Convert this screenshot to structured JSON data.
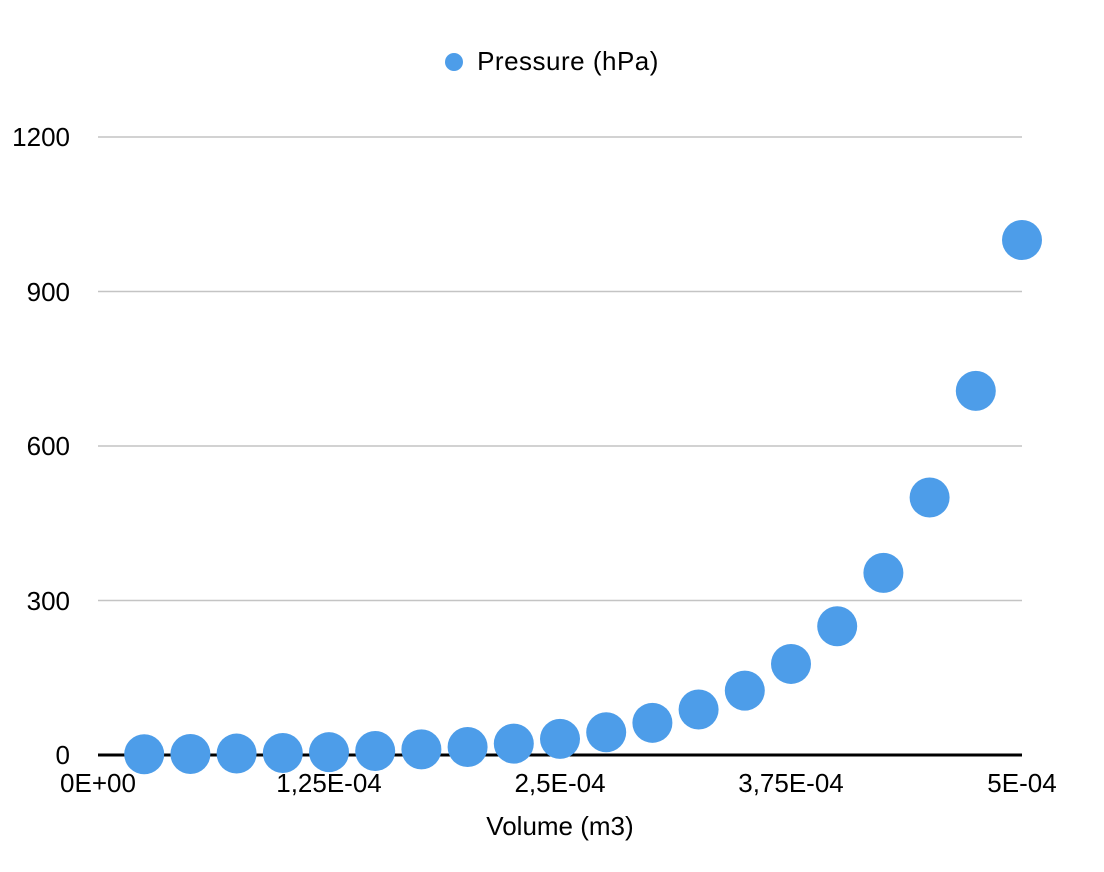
{
  "legend": {
    "label": "Pressure (hPa)"
  },
  "chart_data": {
    "type": "scatter",
    "title": "",
    "xlabel": "Volume (m3)",
    "ylabel": "",
    "xlim": [
      0,
      0.0005
    ],
    "ylim": [
      0,
      1200
    ],
    "grid": "horizontal-only",
    "legend_position": "top-center",
    "x_tick_values": [
      0,
      0.000125,
      0.00025,
      0.000375,
      0.0005
    ],
    "x_tick_labels": [
      "0E+00",
      "1,25E-04",
      "2,5E-04",
      "3,75E-04",
      "5E-04"
    ],
    "y_tick_values": [
      0,
      300,
      600,
      900,
      1200
    ],
    "y_tick_labels": [
      "0",
      "300",
      "600",
      "900",
      "1200"
    ],
    "series": [
      {
        "name": "Pressure (hPa)",
        "color": "#4d9de9",
        "x": [
          2.5e-05,
          5e-05,
          7.5e-05,
          0.0001,
          0.000125,
          0.00015,
          0.000175,
          0.0002,
          0.000225,
          0.00025,
          0.000275,
          0.0003,
          0.000325,
          0.00035,
          0.000375,
          0.0004,
          0.000425,
          0.00045,
          0.000475,
          0.0005
        ],
        "y": [
          1.4,
          2.0,
          2.8,
          3.9,
          5.5,
          7.8,
          11.0,
          15.6,
          22.1,
          31.3,
          44.2,
          62.5,
          88.4,
          125,
          176.8,
          250,
          353.6,
          500,
          707.1,
          1000
        ]
      }
    ],
    "colors": {
      "point": "#4d9de9",
      "gridline": "#c4c4c4",
      "axis_line": "#000000",
      "text": "#000000",
      "background": "#ffffff"
    }
  }
}
